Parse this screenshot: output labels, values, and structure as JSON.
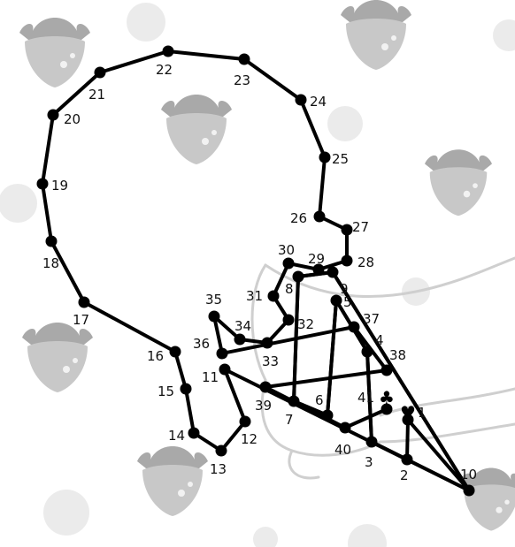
{
  "puzzle": {
    "dot_labels": [
      "1",
      "2",
      "3",
      "4",
      "5",
      "6",
      "7",
      "8",
      "9",
      "10",
      "11",
      "12",
      "13",
      "14",
      "15",
      "16",
      "17",
      "18",
      "19",
      "20",
      "21",
      "22",
      "23",
      "24",
      "25",
      "26",
      "27",
      "28",
      "29",
      "30",
      "31",
      "32",
      "33",
      "34",
      "35",
      "36",
      "37",
      "38",
      "39",
      "40",
      "41"
    ],
    "marker_symbols": [
      "♥",
      "♣"
    ],
    "colors": {
      "line": "#000000",
      "dot": "#000000",
      "label": "#111111",
      "strawberry": "#c8c8c8",
      "leaf": "#a9a9a9",
      "bubble": "#ebebeb",
      "hand_outline": "#cfcfcf"
    },
    "background_icons": [
      "strawberry-icon",
      "bubble-icon",
      "hand-outline"
    ]
  }
}
